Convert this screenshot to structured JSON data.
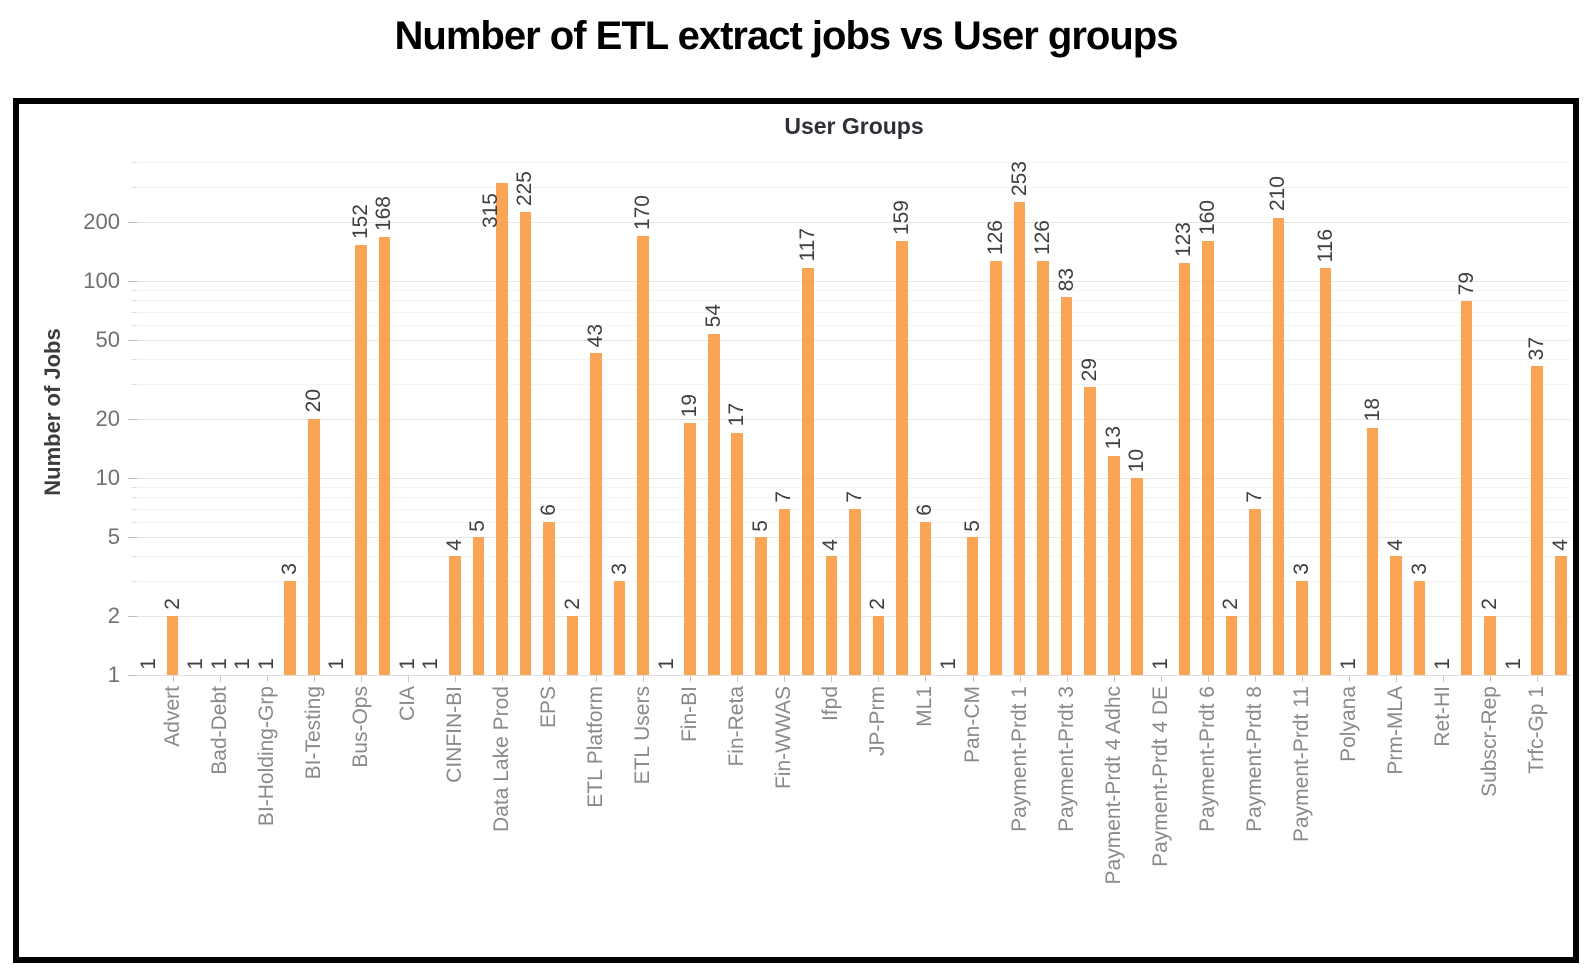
{
  "title": "Number of ETL extract jobs vs User groups",
  "chart_data": {
    "type": "bar",
    "title": "Number of ETL extract jobs vs User groups",
    "xlabel": "User Groups",
    "ylabel": "Number of Jobs",
    "y_scale": "log",
    "ylim": [
      1,
      460
    ],
    "y_major_ticks": [
      1,
      2,
      5,
      10,
      20,
      50,
      100,
      200
    ],
    "y_minor_gridlines": [
      3,
      4,
      6,
      7,
      8,
      9,
      30,
      40,
      60,
      70,
      80,
      90,
      300,
      400
    ],
    "grid": "horizontal major and faint minor gridlines",
    "legend": "none",
    "bar_color": "#faa455",
    "note": "61 bars total; axis tick labels are shown under every second bar starting with the 2nd bar (odd indices 1,3,...,59). Bars with value 1 have zero height on the log scale (only their value label is visible). Every bar shows its value as a rotated label above the bar top; the 315 label is drawn beside/over its bar top.",
    "values": [
      1,
      2,
      1,
      1,
      1,
      1,
      3,
      20,
      1,
      152,
      168,
      1,
      1,
      4,
      5,
      315,
      225,
      6,
      2,
      43,
      3,
      170,
      1,
      19,
      54,
      17,
      5,
      7,
      117,
      4,
      7,
      2,
      159,
      6,
      1,
      5,
      126,
      253,
      126,
      83,
      29,
      13,
      10,
      1,
      123,
      160,
      2,
      7,
      210,
      3,
      116,
      1,
      18,
      4,
      3,
      1,
      79,
      2,
      1,
      37,
      4
    ],
    "categories": [
      "Advert",
      "Bad-Debt",
      "BI-Holding-Grp",
      "BI-Testing",
      "Bus-Ops",
      "CIA",
      "CINFIN-BI",
      "Data Lake Prod",
      "EPS",
      "ETL Platform",
      "ETL Users",
      "Fin-BI",
      "Fin-Reta",
      "Fin-WWAS",
      "Ifpd",
      "JP-Prm",
      "ML1",
      "Pan-CM",
      "Payment-Prdt 1",
      "Payment-Prdt 3",
      "Payment-Prdt 4 Adhc",
      "Payment-Prdt 4 DE",
      "Payment-Prdt 6",
      "Payment-Prdt 8",
      "Payment-Prdt 11",
      "Polyana",
      "Prm-MLA",
      "Ret-HI",
      "Subscr-Rep",
      "Trfc-Gp 1"
    ],
    "category_bar_indices": [
      1,
      3,
      5,
      7,
      9,
      11,
      13,
      15,
      17,
      19,
      21,
      23,
      25,
      27,
      29,
      31,
      33,
      35,
      37,
      39,
      41,
      43,
      45,
      47,
      49,
      51,
      53,
      55,
      57,
      59
    ]
  }
}
